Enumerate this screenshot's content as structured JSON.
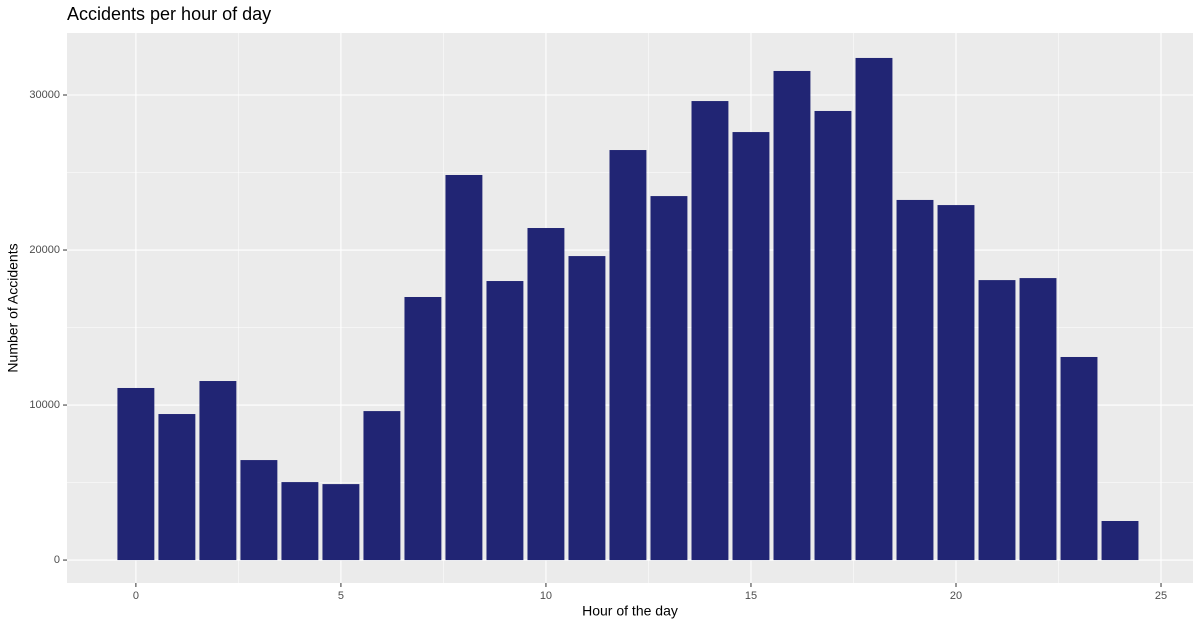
{
  "chart_data": {
    "type": "bar",
    "title": "Accidents per hour of day",
    "x_label": "Hour of the day",
    "y_label": "Number of Accidents",
    "x": [
      0,
      1,
      2,
      3,
      4,
      5,
      6,
      7,
      8,
      9,
      10,
      11,
      12,
      13,
      14,
      15,
      16,
      17,
      18,
      19,
      20,
      21,
      22,
      23,
      24
    ],
    "values": [
      11100,
      9420,
      11550,
      6450,
      5030,
      4900,
      9610,
      16970,
      24840,
      18000,
      21420,
      19610,
      26450,
      23480,
      29610,
      27610,
      31550,
      28970,
      32390,
      23230,
      22900,
      18060,
      18190,
      13100,
      2520
    ],
    "color": "#212574",
    "xlim": [
      -1.68,
      25.78
    ],
    "xticks": [
      0,
      5,
      10,
      15,
      20,
      25
    ],
    "ylim": [
      -1480,
      34000
    ],
    "yticks": [
      0,
      10000,
      20000,
      30000
    ],
    "grid": true
  }
}
